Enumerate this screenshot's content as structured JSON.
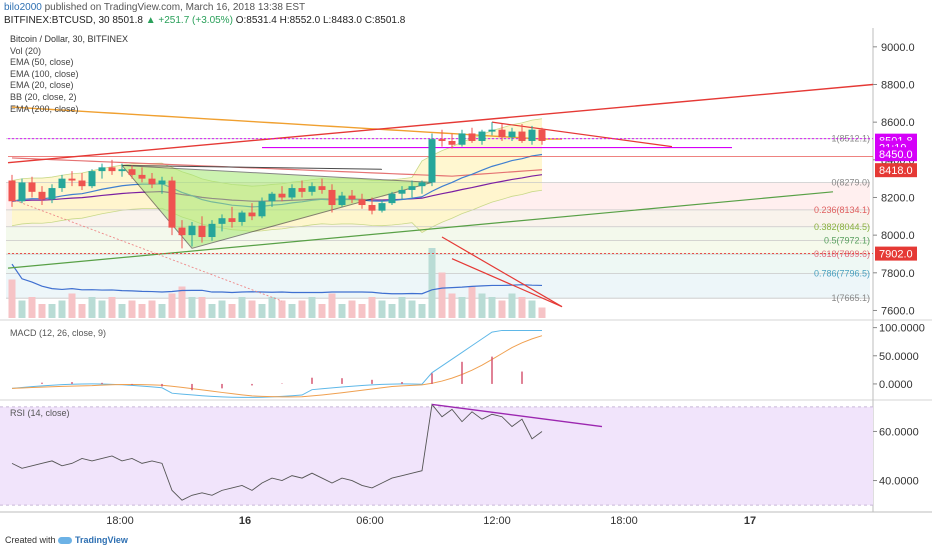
{
  "header": {
    "user": "bilo2000",
    "published": "published on TradingView.com, March 16, 2018 13:38 EST",
    "symbol_line": "BITFINEX:BTCUSD, 30",
    "last": "8501.8",
    "change": "▲ +251.7 (+3.05%)",
    "ohlc": "O:8531.4 H:8552.0 L:8483.0 C:8501.8"
  },
  "legend": {
    "title": "Bitcoin / Dollar, 30, BITFINEX",
    "items": [
      "Vol (20)",
      "EMA (50, close)",
      "EMA (100, close)",
      "EMA (20, close)",
      "BB (20, close, 2)",
      "EMA (200, close)"
    ]
  },
  "panels": {
    "macd_label": "MACD (12, 26, close, 9)",
    "rsi_label": "RSI (14, close)"
  },
  "footer": {
    "created": "Created with",
    "brand": "TradingView"
  },
  "colors": {
    "up": "#26a69a",
    "down": "#ef5350",
    "ema50": "#7b1fa2",
    "ema100": "#e57373",
    "ema20": "#3f7fd0",
    "ema200": "#f0a030",
    "bb_fill": "#fff6c8",
    "triangle_fill": "#a4e870",
    "trend_red": "#e53935",
    "trend_green": "#58a046",
    "rsi_fill": "#f1e4fb",
    "rsi_trend": "#9c27b0"
  },
  "chart_data": {
    "type": "candlestick",
    "interval": "30",
    "price_ylim": [
      7560,
      9100
    ],
    "x_time_ticks": [
      "18:00",
      "16",
      "06:00",
      "12:00",
      "18:00",
      "17"
    ],
    "y_ticks": [
      "9000.0",
      "8800.0",
      "8600.0",
      "8400.0",
      "8200.0",
      "8000.0",
      "7800.0",
      "7600.0"
    ],
    "price_badges": [
      {
        "label": "8501.8",
        "price": 8501.8,
        "color": "#d500f9"
      },
      {
        "label": "21:19",
        "price": 8465,
        "color": "#d500f9"
      },
      {
        "label": "8450.0",
        "price": 8430,
        "color": "#d500f9"
      },
      {
        "label": "8418.0",
        "price": 8345,
        "color": "#e53935"
      },
      {
        "label": "7902.0",
        "price": 7902,
        "color": "#e53935"
      }
    ],
    "fib_levels": [
      {
        "label": "1(8512.1)",
        "price": 8512.1
      },
      {
        "label": "0(8279.0)",
        "price": 8279.0
      },
      {
        "label": "0.236(8134.1)",
        "price": 8134.1
      },
      {
        "label": "0.382(8044.5)",
        "price": 8044.5
      },
      {
        "label": "0.5(7972.1)",
        "price": 7972.1
      },
      {
        "label": "0.618(7899.6)",
        "price": 7899.6
      },
      {
        "label": "0.786(7796.5)",
        "price": 7796.5
      },
      {
        "label": "1(7665.1)",
        "price": 7665.1
      }
    ],
    "candles": [
      {
        "t": 0,
        "o": 8290,
        "h": 8320,
        "l": 8150,
        "c": 8180
      },
      {
        "t": 1,
        "o": 8180,
        "h": 8300,
        "l": 8170,
        "c": 8280
      },
      {
        "t": 2,
        "o": 8280,
        "h": 8310,
        "l": 8200,
        "c": 8230
      },
      {
        "t": 3,
        "o": 8230,
        "h": 8260,
        "l": 8160,
        "c": 8190
      },
      {
        "t": 4,
        "o": 8190,
        "h": 8270,
        "l": 8170,
        "c": 8250
      },
      {
        "t": 5,
        "o": 8250,
        "h": 8320,
        "l": 8230,
        "c": 8300
      },
      {
        "t": 6,
        "o": 8300,
        "h": 8340,
        "l": 8260,
        "c": 8290
      },
      {
        "t": 7,
        "o": 8290,
        "h": 8330,
        "l": 8240,
        "c": 8260
      },
      {
        "t": 8,
        "o": 8260,
        "h": 8350,
        "l": 8250,
        "c": 8340
      },
      {
        "t": 9,
        "o": 8340,
        "h": 8380,
        "l": 8300,
        "c": 8360
      },
      {
        "t": 10,
        "o": 8360,
        "h": 8400,
        "l": 8320,
        "c": 8340
      },
      {
        "t": 11,
        "o": 8340,
        "h": 8380,
        "l": 8310,
        "c": 8350
      },
      {
        "t": 12,
        "o": 8350,
        "h": 8370,
        "l": 8300,
        "c": 8320
      },
      {
        "t": 13,
        "o": 8320,
        "h": 8360,
        "l": 8280,
        "c": 8300
      },
      {
        "t": 14,
        "o": 8300,
        "h": 8330,
        "l": 8250,
        "c": 8270
      },
      {
        "t": 15,
        "o": 8270,
        "h": 8310,
        "l": 8220,
        "c": 8290
      },
      {
        "t": 16,
        "o": 8290,
        "h": 8310,
        "l": 8000,
        "c": 8040
      },
      {
        "t": 17,
        "o": 8040,
        "h": 8080,
        "l": 7930,
        "c": 8000
      },
      {
        "t": 18,
        "o": 8000,
        "h": 8070,
        "l": 7940,
        "c": 8050
      },
      {
        "t": 19,
        "o": 8050,
        "h": 8100,
        "l": 7960,
        "c": 7990
      },
      {
        "t": 20,
        "o": 7990,
        "h": 8080,
        "l": 7970,
        "c": 8060
      },
      {
        "t": 21,
        "o": 8060,
        "h": 8110,
        "l": 8020,
        "c": 8090
      },
      {
        "t": 22,
        "o": 8090,
        "h": 8150,
        "l": 8040,
        "c": 8070
      },
      {
        "t": 23,
        "o": 8070,
        "h": 8130,
        "l": 8050,
        "c": 8120
      },
      {
        "t": 24,
        "o": 8120,
        "h": 8170,
        "l": 8080,
        "c": 8100
      },
      {
        "t": 25,
        "o": 8100,
        "h": 8200,
        "l": 8090,
        "c": 8180
      },
      {
        "t": 26,
        "o": 8180,
        "h": 8230,
        "l": 8150,
        "c": 8220
      },
      {
        "t": 27,
        "o": 8220,
        "h": 8260,
        "l": 8180,
        "c": 8200
      },
      {
        "t": 28,
        "o": 8200,
        "h": 8270,
        "l": 8190,
        "c": 8250
      },
      {
        "t": 29,
        "o": 8250,
        "h": 8290,
        "l": 8200,
        "c": 8230
      },
      {
        "t": 30,
        "o": 8230,
        "h": 8280,
        "l": 8210,
        "c": 8260
      },
      {
        "t": 31,
        "o": 8260,
        "h": 8300,
        "l": 8220,
        "c": 8240
      },
      {
        "t": 32,
        "o": 8240,
        "h": 8270,
        "l": 8120,
        "c": 8160
      },
      {
        "t": 33,
        "o": 8160,
        "h": 8230,
        "l": 8150,
        "c": 8210
      },
      {
        "t": 34,
        "o": 8210,
        "h": 8240,
        "l": 8170,
        "c": 8190
      },
      {
        "t": 35,
        "o": 8190,
        "h": 8220,
        "l": 8140,
        "c": 8160
      },
      {
        "t": 36,
        "o": 8160,
        "h": 8200,
        "l": 8110,
        "c": 8130
      },
      {
        "t": 37,
        "o": 8130,
        "h": 8190,
        "l": 8120,
        "c": 8170
      },
      {
        "t": 38,
        "o": 8170,
        "h": 8230,
        "l": 8160,
        "c": 8220
      },
      {
        "t": 39,
        "o": 8220,
        "h": 8260,
        "l": 8190,
        "c": 8240
      },
      {
        "t": 40,
        "o": 8240,
        "h": 8290,
        "l": 8200,
        "c": 8260
      },
      {
        "t": 41,
        "o": 8260,
        "h": 8290,
        "l": 8220,
        "c": 8280
      },
      {
        "t": 42,
        "o": 8280,
        "h": 8540,
        "l": 8260,
        "c": 8510
      },
      {
        "t": 43,
        "o": 8510,
        "h": 8560,
        "l": 8470,
        "c": 8500
      },
      {
        "t": 44,
        "o": 8500,
        "h": 8540,
        "l": 8460,
        "c": 8480
      },
      {
        "t": 45,
        "o": 8480,
        "h": 8560,
        "l": 8470,
        "c": 8540
      },
      {
        "t": 46,
        "o": 8540,
        "h": 8570,
        "l": 8490,
        "c": 8500
      },
      {
        "t": 47,
        "o": 8500,
        "h": 8560,
        "l": 8480,
        "c": 8550
      },
      {
        "t": 48,
        "o": 8550,
        "h": 8600,
        "l": 8530,
        "c": 8560
      },
      {
        "t": 49,
        "o": 8560,
        "h": 8590,
        "l": 8500,
        "c": 8520
      },
      {
        "t": 50,
        "o": 8520,
        "h": 8570,
        "l": 8500,
        "c": 8550
      },
      {
        "t": 51,
        "o": 8550,
        "h": 8590,
        "l": 8490,
        "c": 8500
      },
      {
        "t": 52,
        "o": 8500,
        "h": 8580,
        "l": 8480,
        "c": 8560
      },
      {
        "t": 53,
        "o": 8560,
        "h": 8570,
        "l": 8480,
        "c": 8500
      }
    ],
    "volume_relative": [
      0.55,
      0.25,
      0.3,
      0.2,
      0.2,
      0.25,
      0.35,
      0.2,
      0.3,
      0.25,
      0.3,
      0.2,
      0.25,
      0.2,
      0.25,
      0.2,
      0.35,
      0.45,
      0.3,
      0.3,
      0.2,
      0.25,
      0.2,
      0.3,
      0.25,
      0.2,
      0.3,
      0.25,
      0.2,
      0.25,
      0.3,
      0.2,
      0.35,
      0.2,
      0.25,
      0.2,
      0.3,
      0.25,
      0.2,
      0.3,
      0.25,
      0.2,
      1.0,
      0.65,
      0.35,
      0.3,
      0.45,
      0.35,
      0.3,
      0.25,
      0.35,
      0.3,
      0.25,
      0.15
    ],
    "macd_ticks": [
      "100.0000",
      "50.0000",
      "0.0000"
    ],
    "macd_ylim": [
      -25,
      110
    ],
    "rsi_ticks": [
      "60.0000",
      "40.0000"
    ],
    "rsi_ylim": [
      28,
      72
    ],
    "rsi": [
      47,
      45,
      46,
      47,
      48,
      46,
      47,
      49,
      48,
      49,
      50,
      48,
      49,
      47,
      48,
      47,
      36,
      32,
      34,
      35,
      34,
      36,
      37,
      38,
      36,
      39,
      41,
      40,
      42,
      41,
      43,
      41,
      39,
      41,
      40,
      38,
      37,
      39,
      41,
      42,
      43,
      44,
      71,
      66,
      69,
      64,
      68,
      65,
      67,
      66,
      62,
      65,
      57,
      60
    ]
  }
}
